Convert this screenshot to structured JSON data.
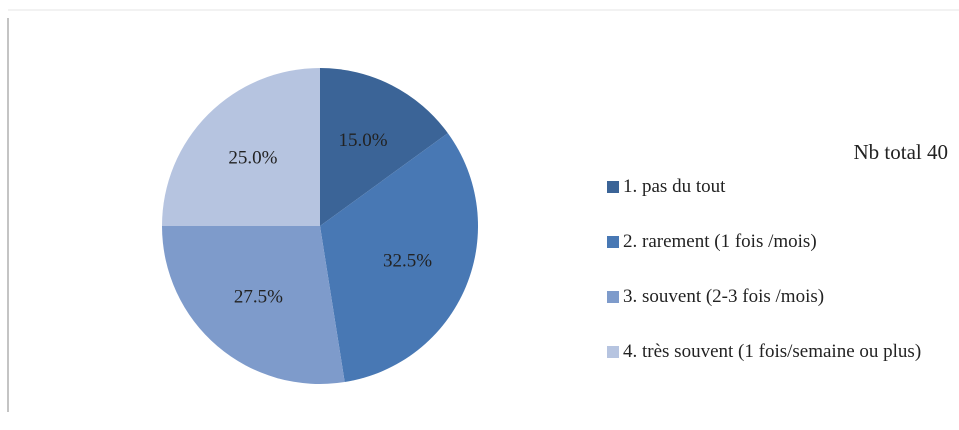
{
  "chart_data": {
    "type": "pie",
    "legend_title": "Nb total 40",
    "categories": [
      "1. pas du tout",
      "2. rarement (1 fois /mois)",
      "3. souvent (2-3 fois /mois)",
      "4. très souvent (1 fois/semaine ou plus)"
    ],
    "values": [
      15,
      32.5,
      27.5,
      25
    ],
    "value_labels": [
      "15.0%",
      "32.5%",
      "27.5%",
      "25.0%"
    ],
    "colors": [
      "#3b6497",
      "#4878b4",
      "#7e9bcb",
      "#b6c4e0"
    ],
    "legend": "right"
  }
}
